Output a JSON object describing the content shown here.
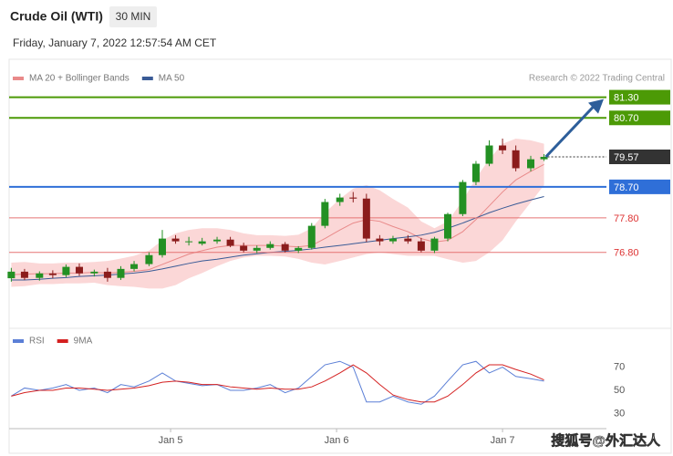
{
  "header": {
    "title": "Crude Oil (WTI)",
    "interval": "30 MIN",
    "datetime": "Friday, January 7, 2022 12:57:54 AM CET",
    "credit": "Research © 2022 Trading Central",
    "watermark": "搜狐号@外汇达人"
  },
  "chart_data": [
    {
      "type": "candlestick",
      "up_color": "#239023",
      "down_color": "#8b1c1c",
      "xlim": [
        4.027,
        7.626
      ],
      "ylim": [
        74.65,
        82.4
      ],
      "x": [
        4.04,
        4.12,
        4.21,
        4.29,
        4.37,
        4.45,
        4.54,
        4.62,
        4.7,
        4.78,
        4.87,
        4.95,
        5.03,
        5.11,
        5.19,
        5.28,
        5.36,
        5.44,
        5.52,
        5.6,
        5.69,
        5.77,
        5.85,
        5.93,
        6.02,
        6.1,
        6.18,
        6.26,
        6.34,
        6.43,
        6.51,
        6.59,
        6.67,
        6.76,
        6.84,
        6.92,
        7.0,
        7.08,
        7.17,
        7.25
      ],
      "open": [
        76.05,
        76.24,
        76.06,
        76.19,
        76.14,
        76.38,
        76.19,
        76.24,
        76.06,
        76.32,
        76.46,
        76.72,
        77.2,
        77.12,
        77.05,
        77.12,
        77.17,
        76.99,
        76.85,
        76.93,
        77.04,
        76.85,
        76.93,
        77.57,
        78.26,
        78.39,
        78.36,
        77.2,
        77.12,
        77.2,
        77.12,
        76.85,
        77.2,
        77.91,
        78.84,
        79.37,
        79.9,
        79.76,
        79.24,
        79.5
      ],
      "high": [
        76.35,
        76.32,
        76.25,
        76.28,
        76.45,
        76.48,
        76.3,
        76.35,
        76.4,
        76.55,
        76.8,
        77.45,
        77.3,
        77.25,
        77.22,
        77.25,
        77.25,
        77.08,
        77.0,
        77.12,
        77.1,
        76.98,
        77.65,
        78.35,
        78.5,
        78.55,
        78.5,
        77.3,
        77.28,
        77.3,
        77.22,
        77.25,
        77.95,
        78.9,
        79.45,
        80.05,
        80.1,
        79.9,
        79.6,
        79.65
      ],
      "low": [
        75.95,
        76.0,
        75.98,
        76.05,
        76.08,
        76.12,
        76.1,
        75.95,
        76.0,
        76.25,
        76.4,
        76.65,
        77.05,
        77.0,
        77.0,
        77.05,
        76.95,
        76.8,
        76.78,
        76.88,
        76.8,
        76.78,
        76.88,
        77.5,
        78.15,
        78.25,
        77.1,
        77.0,
        77.05,
        77.05,
        76.8,
        76.78,
        77.12,
        77.85,
        78.75,
        79.3,
        79.65,
        79.15,
        79.15,
        79.45
      ],
      "close": [
        76.24,
        76.06,
        76.19,
        76.14,
        76.38,
        76.19,
        76.24,
        76.06,
        76.32,
        76.46,
        76.72,
        77.2,
        77.12,
        77.12,
        77.12,
        77.17,
        76.99,
        76.85,
        76.93,
        77.04,
        76.85,
        76.93,
        77.57,
        78.26,
        78.39,
        78.36,
        77.2,
        77.12,
        77.2,
        77.12,
        76.85,
        77.2,
        77.91,
        78.84,
        79.37,
        79.9,
        79.76,
        79.24,
        79.5,
        79.57
      ],
      "overlays": [
        {
          "name": "MA 20 + Bollinger Bands",
          "color": "#e98a8a",
          "band_color": "#fbd7d7",
          "values": [
            76.15,
            76.17,
            76.18,
            76.18,
            76.2,
            76.2,
            76.22,
            76.2,
            76.22,
            76.25,
            76.3,
            76.45,
            76.6,
            76.75,
            76.85,
            76.95,
            77.0,
            77.0,
            77.0,
            77.0,
            76.98,
            76.96,
            77.0,
            77.2,
            77.45,
            77.65,
            77.75,
            77.7,
            77.55,
            77.4,
            77.2,
            77.1,
            77.15,
            77.4,
            77.75,
            78.15,
            78.55,
            78.9,
            79.15,
            79.35
          ],
          "upper": [
            76.5,
            76.52,
            76.48,
            76.48,
            76.5,
            76.5,
            76.52,
            76.55,
            76.62,
            76.7,
            76.85,
            77.15,
            77.35,
            77.45,
            77.5,
            77.5,
            77.45,
            77.35,
            77.3,
            77.3,
            77.28,
            77.31,
            77.5,
            77.95,
            78.35,
            78.65,
            78.75,
            78.6,
            78.35,
            78.1,
            77.7,
            77.5,
            77.7,
            78.3,
            78.95,
            79.5,
            79.95,
            80.1,
            80.05,
            79.95
          ],
          "lower": [
            75.8,
            75.82,
            75.88,
            75.88,
            75.9,
            75.9,
            75.92,
            75.85,
            75.82,
            75.8,
            75.75,
            75.75,
            75.85,
            76.05,
            76.2,
            76.4,
            76.55,
            76.65,
            76.7,
            76.7,
            76.68,
            76.61,
            76.5,
            76.45,
            76.55,
            76.65,
            76.75,
            76.8,
            76.75,
            76.7,
            76.7,
            76.7,
            76.6,
            76.5,
            76.55,
            76.8,
            77.15,
            77.7,
            78.25,
            78.75
          ]
        },
        {
          "name": "MA 50",
          "color": "#3a5b96",
          "values": [
            76.0,
            76.0,
            76.02,
            76.05,
            76.07,
            76.1,
            76.12,
            76.14,
            76.17,
            76.2,
            76.25,
            76.32,
            76.4,
            76.48,
            76.55,
            76.6,
            76.66,
            76.72,
            76.76,
            76.8,
            76.83,
            76.86,
            76.9,
            76.95,
            77.0,
            77.05,
            77.1,
            77.15,
            77.2,
            77.25,
            77.3,
            77.38,
            77.5,
            77.65,
            77.8,
            77.95,
            78.08,
            78.2,
            78.32,
            78.42
          ]
        }
      ],
      "levels": [
        {
          "value": 81.3,
          "label": "81.30",
          "color": "#4c9a06",
          "boxed": true
        },
        {
          "value": 80.7,
          "label": "80.70",
          "color": "#4c9a06",
          "boxed": true
        },
        {
          "value": 79.57,
          "label": "79.57",
          "color": "#333333",
          "boxed": true,
          "dotted": true
        },
        {
          "value": 78.7,
          "label": "78.70",
          "color": "#2f6fd8",
          "boxed": true
        },
        {
          "value": 77.8,
          "label": "77.80",
          "color": "#e57373",
          "boxed": false
        },
        {
          "value": 76.8,
          "label": "76.80",
          "color": "#e57373",
          "boxed": false
        }
      ]
    },
    {
      "type": "line",
      "xlim": [
        4.027,
        7.626
      ],
      "ylim": [
        15,
        85
      ],
      "yticks": [
        30,
        50,
        70
      ],
      "xticks": [
        {
          "value": 5,
          "label": "Jan 5"
        },
        {
          "value": 6,
          "label": "Jan 6"
        },
        {
          "value": 7,
          "label": "Jan 7"
        }
      ],
      "series": [
        {
          "name": "RSI",
          "color": "#5b7fd6",
          "values": [
            45,
            52,
            50,
            52,
            55,
            50,
            52,
            48,
            55,
            53,
            58,
            65,
            58,
            56,
            54,
            55,
            50,
            50,
            52,
            55,
            48,
            52,
            62,
            72,
            75,
            70,
            40,
            40,
            45,
            40,
            38,
            45,
            58,
            72,
            75,
            65,
            70,
            62,
            60,
            58
          ]
        },
        {
          "name": "9MA",
          "color": "#d42020",
          "values": [
            45,
            48,
            50,
            50,
            52,
            52,
            51,
            50,
            51,
            52,
            54,
            57,
            58,
            57,
            55,
            55,
            53,
            52,
            51,
            52,
            51,
            51,
            53,
            58,
            65,
            72,
            65,
            55,
            46,
            42,
            40,
            40,
            45,
            55,
            65,
            72,
            72,
            68,
            64,
            59
          ]
        }
      ]
    }
  ]
}
